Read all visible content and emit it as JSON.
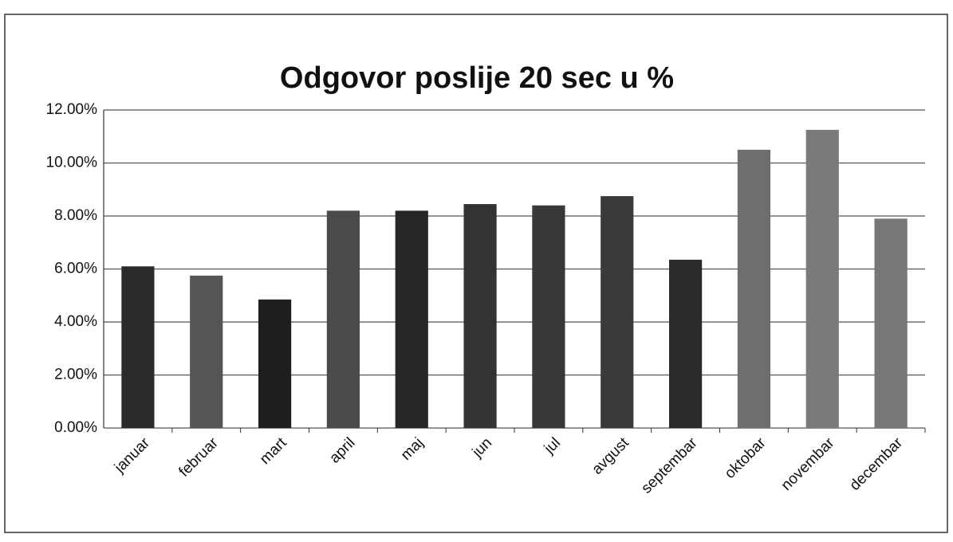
{
  "chart_data": {
    "type": "bar",
    "title": "Odgovor poslije 20 sec u %",
    "categories": [
      "januar",
      "februar",
      "mart",
      "april",
      "maj",
      "jun",
      "jul",
      "avgust",
      "septembar",
      "oktobar",
      "novembar",
      "decembar"
    ],
    "values": [
      6.1,
      5.75,
      4.85,
      8.2,
      8.2,
      8.45,
      8.4,
      8.75,
      6.35,
      10.5,
      11.25,
      7.9
    ],
    "colors": [
      "#2b2b2b",
      "#555555",
      "#1e1e1e",
      "#4a4a4a",
      "#262626",
      "#333333",
      "#383838",
      "#3a3a3a",
      "#2a2a2a",
      "#6e6e6e",
      "#7a7a7a",
      "#777777"
    ],
    "ylim": [
      0,
      12
    ],
    "yticks": [
      {
        "value": 0,
        "label": "0.00%"
      },
      {
        "value": 2,
        "label": "2.00%"
      },
      {
        "value": 4,
        "label": "4.00%"
      },
      {
        "value": 6,
        "label": "6.00%"
      },
      {
        "value": 8,
        "label": "8.00%"
      },
      {
        "value": 10,
        "label": "10.00%"
      },
      {
        "value": 12,
        "label": "12.00%"
      }
    ],
    "grid": true
  }
}
